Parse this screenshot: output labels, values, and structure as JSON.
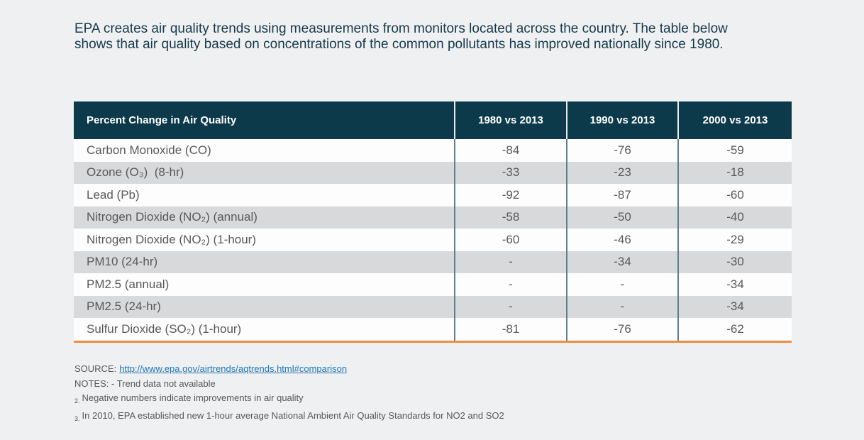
{
  "intro": {
    "text": "EPA creates air quality trends using measurements from monitors located across the country. The table below shows that air quality based on concentrations of the common pollutants has improved nationally since 1980."
  },
  "chart_data": {
    "type": "table",
    "title": "Percent Change in Air Quality",
    "columns": [
      "1980 vs 2013",
      "1990 vs 2013",
      "2000 vs 2013"
    ],
    "rows": [
      {
        "label": "Carbon Monoxide (CO)",
        "values": [
          "-84",
          "-76",
          "-59"
        ]
      },
      {
        "label": "Ozone (O₃)  (8-hr)",
        "values": [
          "-33",
          "-23",
          "-18"
        ]
      },
      {
        "label": "Lead (Pb)",
        "values": [
          "-92",
          "-87",
          "-60"
        ]
      },
      {
        "label": "Nitrogen Dioxide (NO₂) (annual)",
        "values": [
          "-58",
          "-50",
          "-40"
        ]
      },
      {
        "label": "Nitrogen Dioxide (NO₂) (1-hour)",
        "values": [
          "-60",
          "-46",
          "-29"
        ]
      },
      {
        "label": "PM10 (24-hr)",
        "values": [
          "-",
          "-34",
          "-30"
        ]
      },
      {
        "label": "PM2.5 (annual)",
        "values": [
          "-",
          "-",
          "-34"
        ]
      },
      {
        "label": "PM2.5 (24-hr)",
        "values": [
          "-",
          "-",
          "-34"
        ]
      },
      {
        "label": "Sulfur Dioxide (SO₂) (1-hour)",
        "values": [
          "-81",
          "-76",
          "-62"
        ]
      }
    ],
    "layout": {
      "header_background": "#0d3a4b",
      "stripe_gray": "#d8d9da",
      "divider": "#5d808e",
      "bottom_rule": "#f08c3c"
    }
  },
  "footer": {
    "source_label": "SOURCE:",
    "source_link": "http://www.epa.gov/airtrends/aqtrends.html#comparison",
    "notes_line": "NOTES: - Trend data not available",
    "note2_prefix": "2.",
    "note2_text": "Negative numbers indicate improvements in air quality",
    "note3_prefix": "3.",
    "note3_text": "In 2010, EPA established new 1-hour average National Ambient Air Quality Standards for NO2 and SO2"
  },
  "colors": {
    "page_background": "#eff0f1",
    "header_navy": "#0d3a4b",
    "accent_orange": "#f08c3c",
    "link_blue": "#2277b5",
    "body_text": "#58595b",
    "intro_text": "#17394b"
  }
}
